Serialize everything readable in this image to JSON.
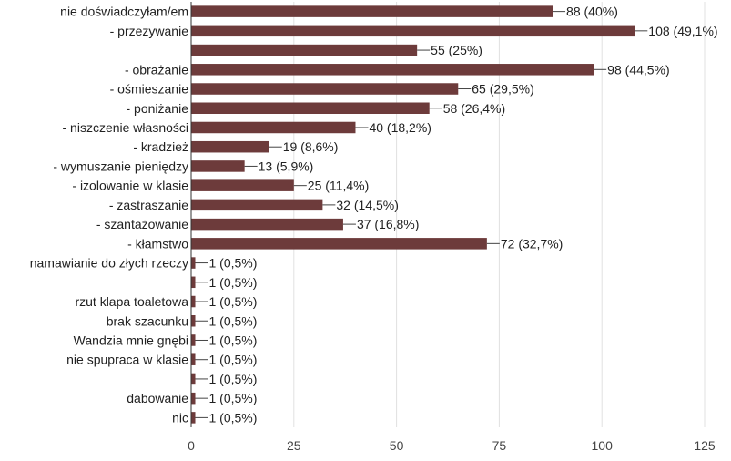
{
  "chart_data": {
    "type": "bar",
    "orientation": "horizontal",
    "categories": [
      "nie doświadczyłam/em",
      "- przezywanie",
      "",
      "- obrażanie",
      "- ośmieszanie",
      "- poniżanie",
      "- niszczenie własności",
      "- kradzież",
      "- wymuszanie pieniędzy",
      "- izolowanie w klasie",
      "- zastraszanie",
      "- szantażowanie",
      "- kłamstwo",
      "namawianie do złych rzeczy",
      "",
      "rzut klapa toaletowa",
      "brak szacunku",
      "Wandzia mnie gnębi",
      "nie spupraca w klasie",
      "",
      "dabowanie",
      "nic"
    ],
    "values": [
      88,
      108,
      55,
      98,
      65,
      58,
      40,
      19,
      13,
      25,
      32,
      37,
      72,
      1,
      1,
      1,
      1,
      1,
      1,
      1,
      1,
      1
    ],
    "data_labels": [
      "88 (40%)",
      "108 (49,1%)",
      "55 (25%)",
      "98 (44,5%)",
      "65 (29,5%)",
      "58 (26,4%)",
      "40 (18,2%)",
      "19 (8,6%)",
      "13 (5,9%)",
      "25 (11,4%)",
      "32 (14,5%)",
      "37 (16,8%)",
      "72 (32,7%)",
      "1 (0,5%)",
      "1 (0,5%)",
      "1 (0,5%)",
      "1 (0,5%)",
      "1 (0,5%)",
      "1 (0,5%)",
      "1 (0,5%)",
      "1 (0,5%)",
      "1 (0,5%)"
    ],
    "xticks": [
      0,
      25,
      50,
      75,
      100,
      125
    ],
    "xlim": [
      0,
      125
    ],
    "grid": true,
    "bar_color": "#6d3b3b"
  }
}
